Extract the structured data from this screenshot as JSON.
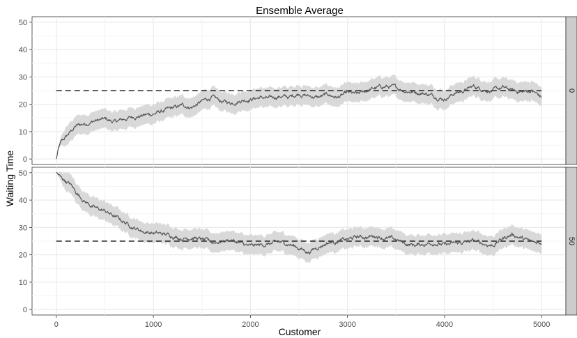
{
  "chart_data": {
    "type": "line",
    "title": "Ensemble Average",
    "xlabel": "Customer",
    "ylabel": "Waiting Time",
    "xlim": [
      -250,
      5250
    ],
    "ylim": [
      -2,
      52
    ],
    "x_ticks": [
      0,
      1000,
      2000,
      3000,
      4000,
      5000
    ],
    "y_ticks": [
      0,
      10,
      20,
      30,
      40,
      50
    ],
    "grid": true,
    "reference_line": {
      "y": 25,
      "style": "dashed"
    },
    "colors": {
      "line": "#555555",
      "band": "#d9d9d9",
      "reference": "#000000",
      "strip": "#cccccc",
      "grid": "#ebebeb"
    },
    "panels": [
      {
        "facet_label": "0",
        "mean": {
          "x": [
            0,
            25,
            50,
            100,
            150,
            200,
            250,
            300,
            400,
            500,
            600,
            700,
            800,
            900,
            1000,
            1100,
            1200,
            1300,
            1400,
            1500,
            1600,
            1700,
            1800,
            1900,
            2000,
            2100,
            2200,
            2300,
            2400,
            2500,
            2600,
            2700,
            2800,
            2900,
            3000,
            3100,
            3200,
            3300,
            3400,
            3500,
            3600,
            3700,
            3800,
            3900,
            4000,
            4100,
            4200,
            4300,
            4400,
            4500,
            4600,
            4700,
            4800,
            4900,
            5000
          ],
          "y": [
            0,
            4,
            6,
            8,
            10,
            12,
            12.5,
            13,
            14,
            14.5,
            13.5,
            14.5,
            15.5,
            16,
            16.5,
            17.5,
            18.5,
            19.5,
            19,
            21,
            22.5,
            21,
            20.5,
            21.5,
            22,
            22.5,
            22,
            23,
            22.5,
            24,
            23,
            22.5,
            23.5,
            22.5,
            24,
            23.5,
            25,
            26,
            26.5,
            26,
            25,
            24.5,
            24,
            23,
            22,
            24,
            25,
            26.5,
            25.5,
            25,
            26,
            25,
            24.5,
            25,
            22.5
          ]
        },
        "band_halfwidth": 3.5
      },
      {
        "facet_label": "50",
        "mean": {
          "x": [
            0,
            50,
            100,
            150,
            200,
            300,
            400,
            500,
            600,
            700,
            800,
            900,
            1000,
            1100,
            1200,
            1300,
            1400,
            1500,
            1600,
            1700,
            1800,
            1900,
            2000,
            2100,
            2200,
            2300,
            2400,
            2500,
            2600,
            2700,
            2800,
            2900,
            3000,
            3100,
            3200,
            3300,
            3400,
            3500,
            3600,
            3700,
            3800,
            3900,
            4000,
            4100,
            4200,
            4300,
            4400,
            4500,
            4600,
            4700,
            4800,
            4900,
            5000
          ],
          "y": [
            50,
            48,
            47,
            45.5,
            43,
            39.5,
            37,
            36,
            34,
            32,
            30,
            28.5,
            28,
            27.5,
            27,
            26,
            26.5,
            25.5,
            24.5,
            25,
            25.5,
            24,
            23,
            23.5,
            24,
            24.5,
            24,
            22.5,
            21,
            23,
            24.5,
            25,
            25.5,
            26.5,
            26.5,
            27,
            26,
            25.5,
            24,
            23.5,
            24,
            24.5,
            23.5,
            24,
            24.5,
            25,
            24,
            23.5,
            26,
            27.5,
            26,
            24.5,
            24.5
          ]
        },
        "band_halfwidth": 3.5
      }
    ]
  }
}
